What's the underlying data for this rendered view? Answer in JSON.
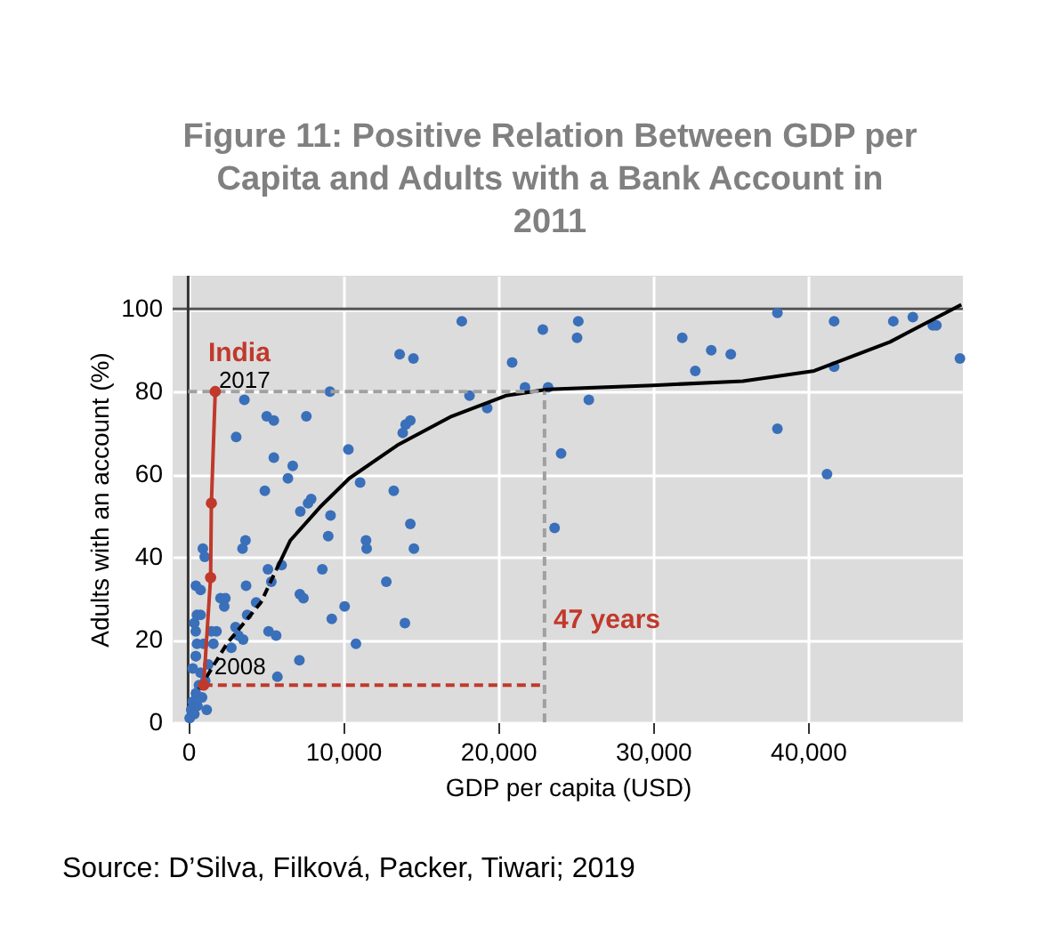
{
  "chart_data": {
    "type": "scatter",
    "title": "Figure 11: Positive Relation Between GDP per Capita and Adults with a Bank Account in 2011",
    "xlabel": "GDP per capita (USD)",
    "ylabel": "Adults with an account (%)",
    "xlim": [
      -1000,
      50000
    ],
    "xticks": [
      0,
      {
        "value": 10000,
        "label": "10,000"
      },
      {
        "value": 20000,
        "label": "20,000"
      },
      {
        "value": 30000,
        "label": "30,000"
      },
      {
        "value": 40000,
        "label": "40,000"
      }
    ],
    "ylim": [
      0,
      108
    ],
    "yticks": [
      0,
      20,
      40,
      60,
      80,
      100
    ],
    "grid": true,
    "series": [
      {
        "color": "#3a6fba",
        "marker": "circle",
        "x": [
          13650,
          14540,
          3630,
          9150,
          5070,
          5530,
          7630,
          3100,
          14340,
          14040,
          13850,
          10340,
          5530,
          6750,
          6440,
          11100,
          4950,
          13270,
          7940,
          7740,
          7240,
          9190,
          14340,
          9040,
          3700,
          3510,
          950,
          1070,
          11480,
          11520,
          14570,
          6030,
          5150,
          8660,
          12790,
          3740,
          5370,
          500,
          800,
          7210,
          7440,
          4390,
          2090,
          2400,
          2330,
          3810,
          570,
          10100,
          9270,
          13990,
          3060,
          5190,
          5680,
          3550,
          10830,
          1830,
          490,
          570,
          1630,
          490,
          7180,
          5760,
          2790,
          3240,
          17660,
          22890,
          25180,
          25100,
          20910,
          18160,
          19300,
          21740,
          23230,
          25860,
          24070,
          23650,
          31890,
          33760,
          35020,
          32730,
          38030,
          38030,
          41690,
          41690,
          41230,
          45510,
          46770,
          48060,
          48290,
          49810,
          100,
          200,
          300,
          400,
          500,
          600,
          700,
          800,
          300,
          500,
          900,
          1200,
          1300,
          400,
          800,
          1000,
          1500,
          1100
        ],
        "values": [
          89,
          88,
          78,
          80,
          74,
          73,
          74,
          69,
          73,
          72,
          70,
          66,
          64,
          62,
          59,
          58,
          56,
          56,
          54,
          53,
          51,
          50,
          48,
          45,
          44,
          42,
          42,
          40,
          44,
          42,
          42,
          38,
          37,
          37,
          34,
          33,
          34,
          33,
          32,
          31,
          30,
          29,
          30,
          30,
          28,
          26,
          26,
          28,
          25,
          24,
          23,
          22,
          21,
          20,
          19,
          22,
          22,
          19,
          19,
          16,
          15,
          11,
          18,
          21,
          97,
          95,
          97,
          93,
          87,
          79,
          76,
          81,
          81,
          78,
          65,
          47,
          93,
          90,
          89,
          85,
          99,
          71,
          97,
          86,
          60,
          97,
          98,
          96,
          96,
          88,
          1,
          3,
          5,
          2,
          7,
          4,
          9,
          12,
          13,
          16,
          6,
          3,
          14,
          24,
          26,
          19,
          22,
          10
        ]
      },
      {
        "type": "line",
        "color": "#000000",
        "line_style": "dashed",
        "x": [
          700,
          2500,
          4700,
          5700
        ],
        "values": [
          8,
          19,
          29,
          37
        ]
      },
      {
        "type": "line",
        "color": "#000000",
        "line_style": "solid",
        "x": [
          5700,
          6600,
          8500,
          10400,
          13500,
          17000,
          20500,
          23200,
          30000,
          35800,
          40400,
          45300,
          49900
        ],
        "values": [
          37,
          44,
          52,
          59,
          67,
          74,
          79,
          80.5,
          81.5,
          82.5,
          85,
          92,
          101
        ]
      },
      {
        "type": "line",
        "color": "#a0a0a0",
        "line_style": "dashed",
        "x": [
          0,
          23000
        ],
        "values": [
          80,
          80
        ]
      },
      {
        "type": "line",
        "color": "#a0a0a0",
        "line_style": "dashed",
        "x": [
          23000,
          23000
        ],
        "values": [
          0,
          80
        ]
      },
      {
        "type": "line",
        "color": "#c0392b",
        "line_style": "dashed",
        "x": [
          1000,
          23000
        ],
        "values": [
          9,
          9
        ]
      },
      {
        "type": "line",
        "name": "India",
        "color": "#c0392b",
        "line_style": "solid",
        "marker": "circle",
        "x": [
          1000,
          1450,
          1500,
          1750
        ],
        "values": [
          9,
          35,
          53,
          80
        ]
      }
    ],
    "ref_lines": [
      {
        "axis": "y",
        "value": 100,
        "color": "#555555"
      },
      {
        "axis": "x",
        "value": 0,
        "color": "#333333"
      }
    ],
    "annotations": [
      {
        "text": "2017",
        "x": 1750,
        "y": 80
      },
      {
        "text": "2008",
        "x": 1000,
        "y": 9
      },
      {
        "text": "47 years",
        "x": 23000,
        "y": 25
      },
      "Source: D’Silva, Filková, Packer, Tiwari; 2019"
    ]
  }
}
